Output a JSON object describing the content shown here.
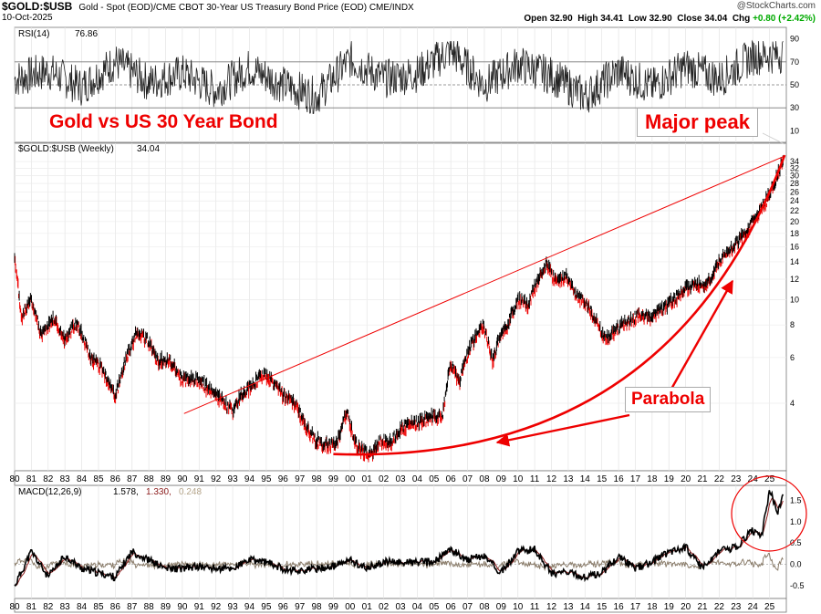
{
  "header": {
    "symbol": "$GOLD:$USB",
    "description": "Gold - Spot (EOD)/CME CBOT 30-Year US Treasury Bond Price (EOD) CME/INDX",
    "date": "10-Oct-2025",
    "watermark": "@StockCharts.com",
    "ohlc": {
      "open_label": "Open",
      "open": "32.90",
      "high_label": "High",
      "high": "34.41",
      "low_label": "Low",
      "low": "32.90",
      "close_label": "Close",
      "close": "34.04",
      "chg_label": "Chg",
      "chg": "+0.80 (+2.42%)"
    }
  },
  "annotations": {
    "title": "Gold vs US 30 Year Bond",
    "major_peak": "Major peak",
    "parabola": "Parabola"
  },
  "colors": {
    "accent": "#ee0000",
    "price": "#000000",
    "macd_line": "#000000",
    "signal_line": "#8b1a1a",
    "histogram": "#8b7d6b"
  },
  "chart_data": [
    {
      "type": "line",
      "title": "RSI(14) 76.86",
      "legend_name": "RSI(14)",
      "legend_value": "76.86",
      "ylim": [
        0,
        100
      ],
      "yticks": [
        10,
        30,
        50,
        70,
        90
      ],
      "reference_lines": [
        30,
        50,
        70
      ],
      "x": [
        1980,
        1982,
        1984,
        1986,
        1988,
        1990,
        1992,
        1994,
        1996,
        1998,
        2000,
        2002,
        2004,
        2006,
        2008,
        2010,
        2012,
        2014,
        2016,
        2018,
        2020,
        2022,
        2024,
        2025.8
      ],
      "values": [
        55,
        62,
        48,
        70,
        52,
        60,
        45,
        65,
        50,
        40,
        72,
        55,
        60,
        80,
        50,
        68,
        58,
        40,
        62,
        48,
        66,
        55,
        75,
        76.86
      ]
    },
    {
      "type": "line",
      "title": "$GOLD:$USB (Weekly) 34.04",
      "legend_name": "$GOLD:$USB (Weekly)",
      "legend_value": "34.04",
      "scale": "log",
      "ylim": [
        2.2,
        40
      ],
      "yticks": [
        4,
        6,
        8,
        10,
        12,
        14,
        16,
        18,
        20,
        22,
        24,
        26,
        28,
        30,
        32,
        34
      ],
      "x": [
        1980.0,
        1980.4,
        1981.0,
        1981.6,
        1982.3,
        1983.0,
        1983.7,
        1984.5,
        1985.2,
        1986.0,
        1986.6,
        1987.3,
        1987.9,
        1988.5,
        1989.2,
        1990.0,
        1990.8,
        1991.6,
        1992.3,
        1993.0,
        1993.6,
        1994.2,
        1994.8,
        1995.4,
        1996.0,
        1996.7,
        1997.3,
        1997.9,
        1998.5,
        1999.2,
        1999.8,
        2000.3,
        2000.8,
        2001.3,
        2001.8,
        2002.4,
        2003.0,
        2003.6,
        2004.3,
        2005.0,
        2005.5,
        2006.0,
        2006.5,
        2007.2,
        2007.9,
        2008.5,
        2008.9,
        2009.4,
        2010.0,
        2010.6,
        2011.2,
        2011.7,
        2012.3,
        2012.9,
        2013.4,
        2014.0,
        2014.6,
        2015.2,
        2015.8,
        2016.5,
        2017.2,
        2017.9,
        2018.6,
        2019.3,
        2020.0,
        2020.6,
        2021.2,
        2021.8,
        2022.4,
        2023.0,
        2023.6,
        2024.2,
        2024.8,
        2025.3,
        2025.8
      ],
      "values": [
        14.0,
        8.5,
        10.0,
        7.2,
        8.5,
        7.0,
        8.2,
        6.0,
        5.4,
        4.2,
        5.8,
        7.5,
        7.0,
        5.8,
        5.9,
        4.9,
        5.0,
        4.5,
        4.1,
        3.7,
        4.4,
        4.7,
        5.2,
        4.8,
        4.3,
        4.0,
        3.3,
        2.9,
        2.75,
        2.8,
        3.7,
        2.8,
        2.6,
        2.55,
        2.9,
        2.8,
        3.2,
        3.3,
        3.4,
        3.6,
        3.5,
        5.7,
        4.8,
        6.7,
        8.0,
        5.8,
        7.2,
        8.0,
        10.0,
        9.5,
        12.0,
        13.8,
        11.5,
        12.2,
        10.5,
        9.8,
        8.4,
        7.0,
        7.6,
        8.2,
        8.7,
        8.6,
        9.2,
        10.0,
        11.0,
        11.6,
        11.0,
        13.5,
        15.0,
        16.5,
        18.0,
        21.0,
        24.0,
        28.0,
        34.04
      ]
    },
    {
      "type": "line",
      "title": "MACD(12,26,9) 1.578, 1.330, 0.248",
      "legend_name": "MACD(12,26,9)",
      "macd": "1.578",
      "signal": "1.330",
      "histogram": "0.248",
      "ylim": [
        -0.8,
        1.85
      ],
      "yticks": [
        -0.5,
        0.0,
        0.5,
        1.0,
        1.5
      ],
      "x": [
        1980,
        1981,
        1982,
        1983,
        1984,
        1985,
        1986,
        1987,
        1988,
        1989,
        1990,
        1991,
        1992,
        1993,
        1994,
        1995,
        1996,
        1997,
        1998,
        1999,
        2000,
        2001,
        2002,
        2003,
        2004,
        2005,
        2006,
        2007,
        2008,
        2009,
        2010,
        2011,
        2012,
        2013,
        2014,
        2015,
        2016,
        2017,
        2018,
        2019,
        2020,
        2021,
        2022,
        2023,
        2024,
        2024.5,
        2025,
        2025.5,
        2025.8
      ],
      "values": [
        -0.5,
        0.3,
        -0.3,
        0.2,
        -0.1,
        -0.2,
        -0.3,
        0.3,
        0.1,
        -0.1,
        -0.1,
        -0.05,
        -0.1,
        -0.1,
        0.1,
        0.05,
        -0.1,
        -0.15,
        -0.1,
        -0.05,
        0.1,
        -0.1,
        0.05,
        0.05,
        0.05,
        0.05,
        0.35,
        0.1,
        0.2,
        -0.2,
        0.3,
        0.35,
        -0.2,
        -0.2,
        -0.3,
        -0.2,
        0.2,
        -0.1,
        0.05,
        0.3,
        0.4,
        -0.1,
        0.3,
        0.4,
        0.8,
        0.6,
        1.75,
        1.2,
        1.578
      ]
    }
  ],
  "x_axis": {
    "ticks": [
      "80",
      "81",
      "82",
      "83",
      "84",
      "85",
      "86",
      "87",
      "88",
      "89",
      "90",
      "91",
      "92",
      "93",
      "94",
      "95",
      "96",
      "97",
      "98",
      "99",
      "00",
      "01",
      "02",
      "03",
      "04",
      "05",
      "06",
      "07",
      "08",
      "09",
      "10",
      "11",
      "12",
      "13",
      "14",
      "15",
      "16",
      "17",
      "18",
      "19",
      "20",
      "21",
      "22",
      "23",
      "24",
      "25"
    ]
  }
}
